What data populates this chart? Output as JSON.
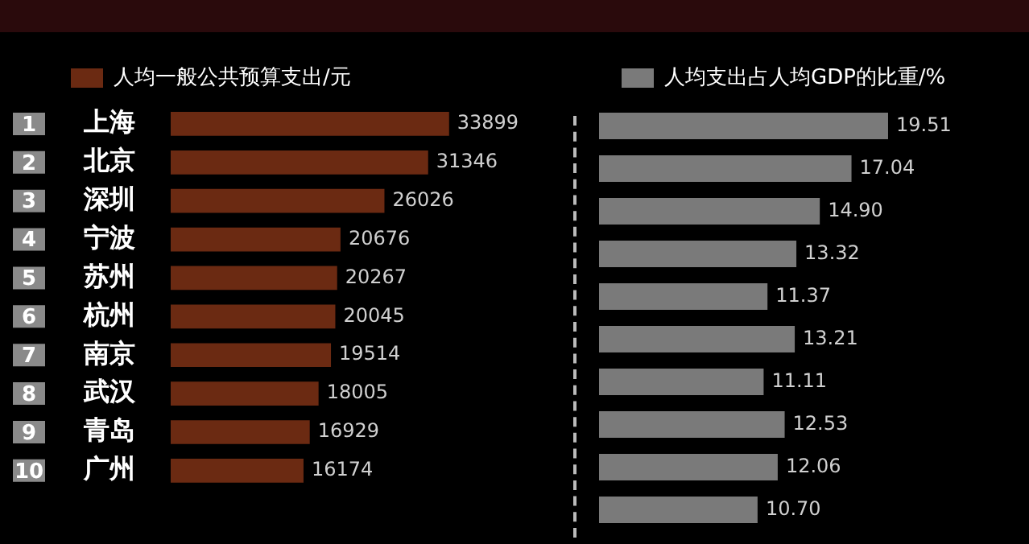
{
  "chart_data": [
    {
      "type": "bar",
      "orientation": "horizontal",
      "categories": [
        "上海",
        "北京",
        "深圳",
        "宁波",
        "苏州",
        "杭州",
        "南京",
        "武汉",
        "青岛",
        "广州"
      ],
      "series": [
        {
          "name": "人均一般公共预算支出/元",
          "color": "#6b2a12",
          "values": [
            33899,
            31346,
            26026,
            20676,
            20267,
            20045,
            19514,
            18005,
            16929,
            16174
          ]
        }
      ],
      "tick_labels": "y",
      "legend": "top",
      "data_labels": true,
      "annotations": [
        "1",
        "2",
        "3",
        "4",
        "5",
        "6",
        "7",
        "8",
        "9",
        "10"
      ]
    },
    {
      "type": "bar",
      "orientation": "horizontal",
      "categories": [
        null,
        null,
        null,
        null,
        null,
        null,
        null,
        null,
        null,
        null
      ],
      "series": [
        {
          "name": "人均支出占人均GDP的比重/%",
          "color": "#7a7a7a",
          "values": [
            19.51,
            17.04,
            14.9,
            13.32,
            11.37,
            13.21,
            11.11,
            12.53,
            12.06,
            10.7
          ],
          "value_labels": [
            "19.51",
            "17.04",
            "14.90",
            "13.32",
            "11.37",
            "13.21",
            "11.11",
            "12.53",
            "12.06",
            "10.70"
          ]
        }
      ],
      "tick_labels": false,
      "legend": "top"
    }
  ]
}
